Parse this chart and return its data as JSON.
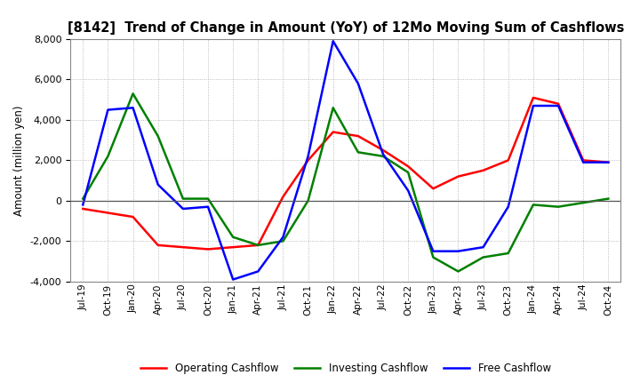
{
  "title": "[8142]  Trend of Change in Amount (YoY) of 12Mo Moving Sum of Cashflows",
  "ylabel": "Amount (million yen)",
  "background_color": "#ffffff",
  "grid_color": "#aaaaaa",
  "x_labels": [
    "Jul-19",
    "Oct-19",
    "Jan-20",
    "Apr-20",
    "Jul-20",
    "Oct-20",
    "Jan-21",
    "Apr-21",
    "Jul-21",
    "Oct-21",
    "Jan-22",
    "Apr-22",
    "Jul-22",
    "Oct-22",
    "Jan-23",
    "Apr-23",
    "Jul-23",
    "Oct-23",
    "Jan-24",
    "Apr-24",
    "Jul-24",
    "Oct-24"
  ],
  "operating": [
    -400,
    -600,
    -800,
    -2200,
    -2300,
    -2400,
    -2300,
    -2200,
    200,
    2000,
    3400,
    3200,
    2500,
    1700,
    600,
    1200,
    1500,
    2000,
    5100,
    4800,
    2000,
    1900
  ],
  "investing": [
    100,
    2200,
    5300,
    3200,
    100,
    100,
    -1800,
    -2200,
    -2000,
    0,
    4600,
    2400,
    2200,
    1400,
    -2800,
    -3500,
    -2800,
    -2600,
    -200,
    -300,
    -100,
    100
  ],
  "free": [
    -200,
    4500,
    4600,
    800,
    -400,
    -300,
    -3900,
    -3500,
    -1800,
    2200,
    7900,
    5800,
    2300,
    500,
    -2500,
    -2500,
    -2300,
    -300,
    4700,
    4700,
    1900,
    1900
  ],
  "operating_color": "#ff0000",
  "investing_color": "#008000",
  "free_color": "#0000ff",
  "ylim": [
    -4000,
    8000
  ],
  "yticks": [
    -4000,
    -2000,
    0,
    2000,
    4000,
    6000,
    8000
  ],
  "legend_labels": [
    "Operating Cashflow",
    "Investing Cashflow",
    "Free Cashflow"
  ],
  "figwidth": 7.2,
  "figheight": 4.4,
  "dpi": 100
}
